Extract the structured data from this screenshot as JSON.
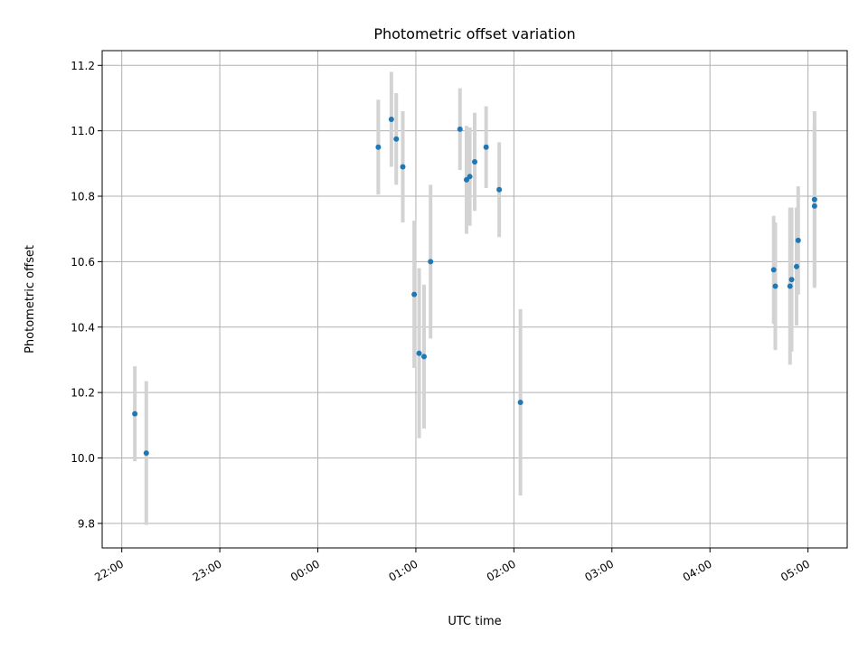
{
  "chart_data": {
    "type": "scatter",
    "title": "Photometric offset variation",
    "xlabel": "UTC time",
    "ylabel": "Photometric offset",
    "x_tick_labels": [
      "22:00",
      "23:00",
      "00:00",
      "01:00",
      "02:00",
      "03:00",
      "04:00",
      "05:00"
    ],
    "y_ticks": [
      9.8,
      10.0,
      10.2,
      10.4,
      10.6,
      10.8,
      11.0,
      11.2
    ],
    "y_tick_labels": [
      "9.8",
      "10.0",
      "10.2",
      "10.4",
      "10.6",
      "10.8",
      "11.0",
      "11.2"
    ],
    "xlim_hours_after_2200": [
      -0.2,
      7.4
    ],
    "ylim": [
      9.725,
      11.245
    ],
    "grid": true,
    "marker_color": "#1f77b4",
    "errorbar_color": "#d3d3d3",
    "points": [
      {
        "x": "22:08",
        "y": 10.135,
        "err": 0.145
      },
      {
        "x": "22:15",
        "y": 10.015,
        "err": 0.22
      },
      {
        "x": "00:37",
        "y": 10.95,
        "err": 0.145
      },
      {
        "x": "00:45",
        "y": 11.035,
        "err": 0.145
      },
      {
        "x": "00:48",
        "y": 10.975,
        "err": 0.14
      },
      {
        "x": "00:52",
        "y": 10.89,
        "err": 0.17
      },
      {
        "x": "00:59",
        "y": 10.5,
        "err": 0.225
      },
      {
        "x": "01:02",
        "y": 10.32,
        "err": 0.26
      },
      {
        "x": "01:05",
        "y": 10.31,
        "err": 0.22
      },
      {
        "x": "01:09",
        "y": 10.6,
        "err": 0.235
      },
      {
        "x": "01:27",
        "y": 11.005,
        "err": 0.125
      },
      {
        "x": "01:31",
        "y": 10.85,
        "err": 0.165
      },
      {
        "x": "01:33",
        "y": 10.86,
        "err": 0.15
      },
      {
        "x": "01:36",
        "y": 10.905,
        "err": 0.15
      },
      {
        "x": "01:43",
        "y": 10.95,
        "err": 0.125
      },
      {
        "x": "01:51",
        "y": 10.82,
        "err": 0.145
      },
      {
        "x": "02:04",
        "y": 10.17,
        "err": 0.285
      },
      {
        "x": "04:39",
        "y": 10.575,
        "err": 0.165
      },
      {
        "x": "04:40",
        "y": 10.525,
        "err": 0.195
      },
      {
        "x": "04:49",
        "y": 10.525,
        "err": 0.24
      },
      {
        "x": "04:50",
        "y": 10.545,
        "err": 0.22
      },
      {
        "x": "04:53",
        "y": 10.585,
        "err": 0.18
      },
      {
        "x": "04:54",
        "y": 10.665,
        "err": 0.165
      },
      {
        "x": "05:04",
        "y": 10.79,
        "err": 0.27
      },
      {
        "x": "05:04",
        "y": 10.77,
        "err": 0.245
      }
    ]
  }
}
